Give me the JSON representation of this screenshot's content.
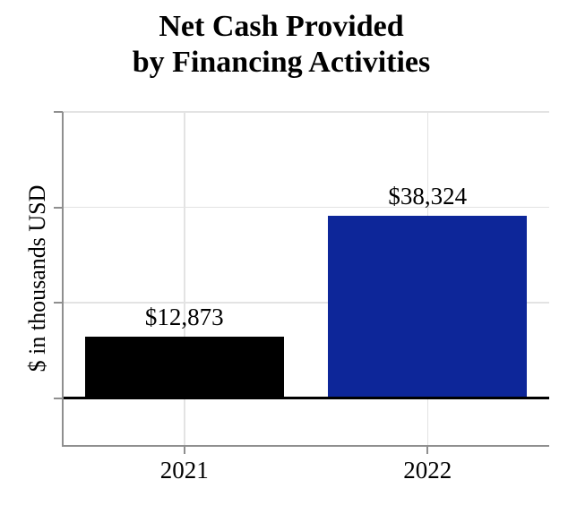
{
  "title": {
    "line1": "Net Cash Provided",
    "line2": "by Financing Activities"
  },
  "y_axis": {
    "label": "$ in thousands USD"
  },
  "chart_data": {
    "type": "bar",
    "title": "Net Cash Provided by Financing Activities",
    "categories": [
      "2021",
      "2022"
    ],
    "values": [
      12873,
      38324
    ],
    "value_labels": [
      "$12,873",
      "$38,324"
    ],
    "bar_colors": [
      "#000000",
      "#0d2699"
    ],
    "xlabel": "",
    "ylabel": "$ in thousands USD",
    "ylim": [
      -10000,
      60000
    ],
    "yticks": [
      0,
      20000,
      40000,
      60000
    ],
    "ytick_labels": [
      "",
      "",
      "",
      ""
    ],
    "grid": true,
    "legend": false
  },
  "colors": {
    "background": "#ffffff",
    "gridline": "#e3e3e3",
    "axis": "#8f8f8f",
    "zero_line": "#000000",
    "title_text": "#000000",
    "label_text": "#000000"
  }
}
